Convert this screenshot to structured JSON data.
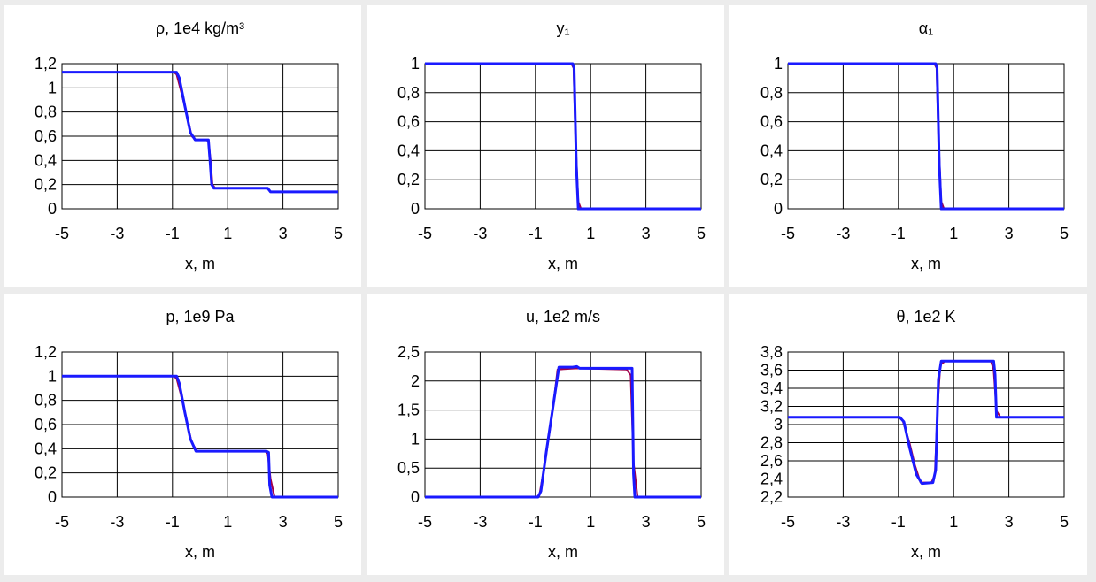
{
  "chart_data": [
    {
      "type": "line",
      "title": "ρ,  1e4 kg/m³",
      "xlabel": "x, m",
      "ylabel": "",
      "xlim": [
        -5,
        5
      ],
      "ylim": [
        0,
        1.2
      ],
      "x_ticks": [
        "-5",
        "-3",
        "-1",
        "1",
        "3",
        "5"
      ],
      "y_ticks": [
        "0",
        "0,2",
        "0,4",
        "0,6",
        "0,8",
        "1",
        "1,2"
      ],
      "grid": true,
      "series": [
        {
          "color": "#a0004a",
          "x": [
            -5,
            -0.95,
            -0.85,
            -0.7,
            -0.5,
            -0.3,
            -0.15,
            0.2,
            0.3,
            0.38,
            0.45,
            0.55,
            2.45,
            2.55,
            5
          ],
          "y": [
            1.13,
            1.13,
            1.11,
            0.98,
            0.8,
            0.6,
            0.57,
            0.57,
            0.56,
            0.4,
            0.2,
            0.17,
            0.17,
            0.14,
            0.14
          ]
        },
        {
          "color": "#1a1aff",
          "x": [
            -5,
            -0.85,
            -0.75,
            -0.55,
            -0.35,
            -0.18,
            0.3,
            0.36,
            0.42,
            0.5,
            2.45,
            2.55,
            5
          ],
          "y": [
            1.13,
            1.13,
            1.08,
            0.85,
            0.63,
            0.57,
            0.57,
            0.4,
            0.2,
            0.17,
            0.17,
            0.14,
            0.14
          ]
        }
      ]
    },
    {
      "type": "line",
      "title": "y₁",
      "xlabel": "x, m",
      "ylabel": "",
      "xlim": [
        -5,
        5
      ],
      "ylim": [
        0,
        1
      ],
      "x_ticks": [
        "-5",
        "-3",
        "-1",
        "1",
        "3",
        "5"
      ],
      "y_ticks": [
        "0",
        "0,2",
        "0,4",
        "0,6",
        "0,8",
        "1"
      ],
      "grid": true,
      "series": [
        {
          "color": "#a0004a",
          "x": [
            -5,
            0.3,
            0.38,
            0.45,
            0.55,
            0.65,
            5
          ],
          "y": [
            1,
            1,
            0.97,
            0.5,
            0.05,
            0,
            0
          ]
        },
        {
          "color": "#1a1aff",
          "x": [
            -5,
            0.35,
            0.4,
            0.48,
            0.55,
            5
          ],
          "y": [
            1,
            1,
            0.97,
            0.3,
            0,
            0
          ]
        }
      ]
    },
    {
      "type": "line",
      "title": "α₁",
      "xlabel": "x, m",
      "ylabel": "",
      "xlim": [
        -5,
        5
      ],
      "ylim": [
        0,
        1
      ],
      "x_ticks": [
        "-5",
        "-3",
        "-1",
        "1",
        "3",
        "5"
      ],
      "y_ticks": [
        "0",
        "0,2",
        "0,4",
        "0,6",
        "0,8",
        "1"
      ],
      "grid": true,
      "series": [
        {
          "color": "#a0004a",
          "x": [
            -5,
            0.3,
            0.38,
            0.45,
            0.55,
            0.65,
            5
          ],
          "y": [
            1,
            1,
            0.97,
            0.5,
            0.05,
            0,
            0
          ]
        },
        {
          "color": "#1a1aff",
          "x": [
            -5,
            0.35,
            0.4,
            0.48,
            0.55,
            5
          ],
          "y": [
            1,
            1,
            0.97,
            0.3,
            0,
            0
          ]
        }
      ]
    },
    {
      "type": "line",
      "title": "p,  1e9 Pa",
      "xlabel": "x, m",
      "ylabel": "",
      "xlim": [
        -5,
        5
      ],
      "ylim": [
        0,
        1.2
      ],
      "x_ticks": [
        "-5",
        "-3",
        "-1",
        "1",
        "3",
        "5"
      ],
      "y_ticks": [
        "0",
        "0,2",
        "0,4",
        "0,6",
        "0,8",
        "1",
        "1,2"
      ],
      "grid": true,
      "series": [
        {
          "color": "#a0004a",
          "x": [
            -5,
            -0.95,
            -0.85,
            -0.7,
            -0.5,
            -0.3,
            -0.1,
            2.35,
            2.45,
            2.55,
            2.7,
            5
          ],
          "y": [
            1,
            1,
            0.98,
            0.85,
            0.65,
            0.45,
            0.38,
            0.38,
            0.36,
            0.15,
            0,
            0
          ]
        },
        {
          "color": "#1a1aff",
          "x": [
            -5,
            -0.85,
            -0.75,
            -0.55,
            -0.35,
            -0.15,
            2.4,
            2.48,
            2.52,
            2.6,
            5
          ],
          "y": [
            1,
            1,
            0.94,
            0.7,
            0.48,
            0.38,
            0.38,
            0.37,
            0.1,
            0,
            0
          ]
        }
      ]
    },
    {
      "type": "line",
      "title": "u,  1e2 m/s",
      "xlabel": "x, m",
      "ylabel": "",
      "xlim": [
        -5,
        5
      ],
      "ylim": [
        0,
        2.5
      ],
      "x_ticks": [
        "-5",
        "-3",
        "-1",
        "1",
        "3",
        "5"
      ],
      "y_ticks": [
        "0",
        "0,5",
        "1",
        "1,5",
        "2",
        "2,5"
      ],
      "grid": true,
      "series": [
        {
          "color": "#a0004a",
          "x": [
            -5,
            -0.95,
            -0.85,
            -0.65,
            -0.4,
            -0.2,
            0.5,
            2.3,
            2.45,
            2.55,
            2.7,
            5
          ],
          "y": [
            0,
            0,
            0.05,
            0.6,
            1.4,
            2.2,
            2.22,
            2.2,
            2.1,
            0.6,
            0,
            0
          ]
        },
        {
          "color": "#1a1aff",
          "x": [
            -5,
            -0.9,
            -0.8,
            -0.6,
            -0.35,
            -0.15,
            0.35,
            0.5,
            0.6,
            2.5,
            2.55,
            2.6,
            5
          ],
          "y": [
            0,
            0,
            0.1,
            0.8,
            1.6,
            2.24,
            2.24,
            2.25,
            2.22,
            2.22,
            0.4,
            0,
            0
          ]
        }
      ]
    },
    {
      "type": "line",
      "title": "θ,  1e2 K",
      "xlabel": "x, m",
      "ylabel": "",
      "xlim": [
        -5,
        5
      ],
      "ylim": [
        2.2,
        3.8
      ],
      "x_ticks": [
        "-5",
        "-3",
        "-1",
        "1",
        "3",
        "5"
      ],
      "y_ticks": [
        "2,2",
        "2,4",
        "2,6",
        "2,8",
        "3",
        "3,2",
        "3,4",
        "3,6",
        "3,8"
      ],
      "grid": true,
      "series": [
        {
          "color": "#a0004a",
          "x": [
            -5,
            -1,
            -0.85,
            -0.6,
            -0.4,
            -0.2,
            0.2,
            0.32,
            0.42,
            0.52,
            0.7,
            2.35,
            2.45,
            2.55,
            2.7,
            5
          ],
          "y": [
            3.08,
            3.08,
            3.05,
            2.8,
            2.55,
            2.36,
            2.36,
            2.45,
            3.2,
            3.66,
            3.7,
            3.7,
            3.6,
            3.15,
            3.08,
            3.08
          ]
        },
        {
          "color": "#1a1aff",
          "x": [
            -5,
            -0.95,
            -0.8,
            -0.6,
            -0.35,
            -0.15,
            0.25,
            0.35,
            0.45,
            0.55,
            2.45,
            2.5,
            2.55,
            5
          ],
          "y": [
            3.08,
            3.08,
            3.03,
            2.75,
            2.45,
            2.35,
            2.36,
            2.5,
            3.5,
            3.7,
            3.7,
            3.55,
            3.08,
            3.08
          ]
        }
      ]
    }
  ]
}
